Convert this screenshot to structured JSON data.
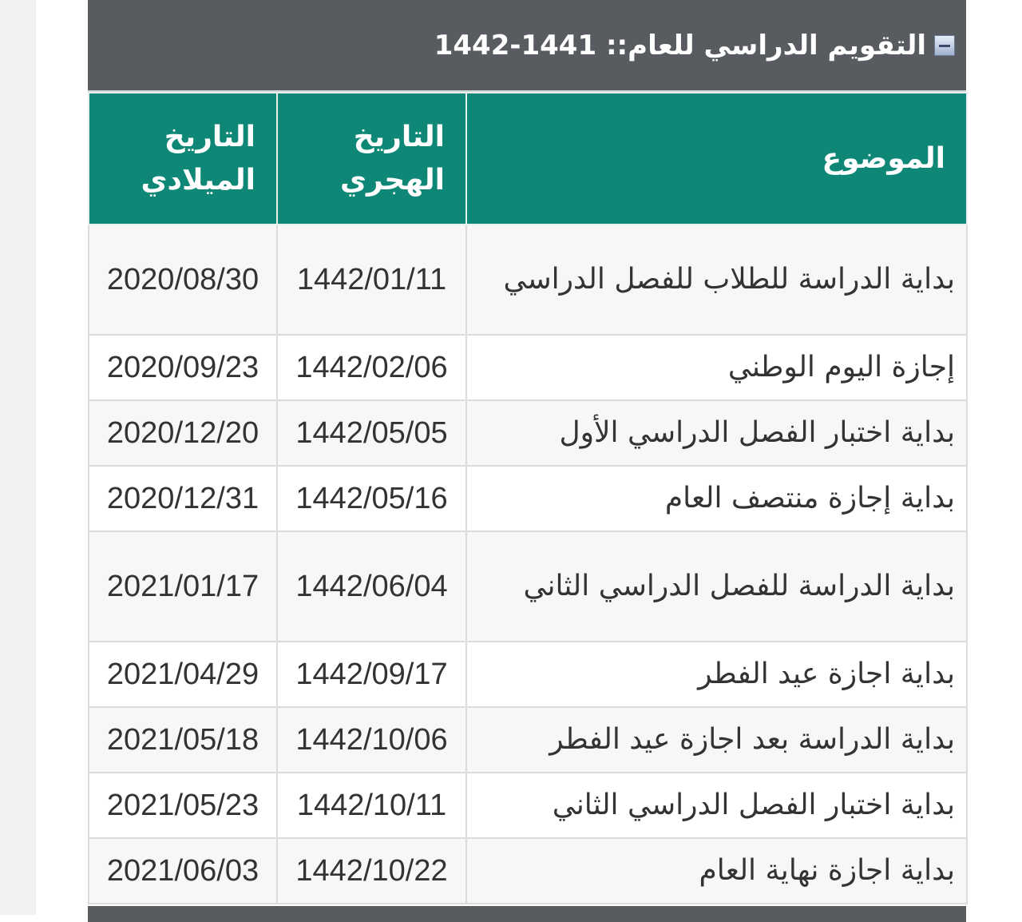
{
  "title": "التقويم الدراسي للعام:: 1441-1442",
  "title_icon": "collapse-icon",
  "headers": {
    "topic": "الموضوع",
    "hijri": "التاريخ الهجري",
    "gregorian": "التاريخ الميلادي"
  },
  "rows": [
    {
      "topic": "بداية الدراسة للطلاب للفصل الدراسي",
      "hijri": "1442/01/11",
      "gregorian": "2020/08/30"
    },
    {
      "topic": "إجازة اليوم الوطني",
      "hijri": "1442/02/06",
      "gregorian": "2020/09/23"
    },
    {
      "topic": "بداية اختبار الفصل الدراسي الأول",
      "hijri": "1442/05/05",
      "gregorian": "2020/12/20"
    },
    {
      "topic": "بداية إجازة منتصف العام",
      "hijri": "1442/05/16",
      "gregorian": "2020/12/31"
    },
    {
      "topic": "بداية الدراسة للفصل الدراسي الثاني",
      "hijri": "1442/06/04",
      "gregorian": "2021/01/17"
    },
    {
      "topic": "بداية اجازة عيد الفطر",
      "hijri": "1442/09/17",
      "gregorian": "2021/04/29"
    },
    {
      "topic": "بداية الدراسة بعد اجازة عيد الفطر",
      "hijri": "1442/10/06",
      "gregorian": "2021/05/18"
    },
    {
      "topic": "بداية اختبار الفصل الدراسي الثاني",
      "hijri": "1442/10/11",
      "gregorian": "2021/05/23"
    },
    {
      "topic": "بداية اجازة نهاية العام",
      "hijri": "1442/10/22",
      "gregorian": "2021/06/03"
    }
  ],
  "colors": {
    "title_bg": "#585b60",
    "header_bg": "#0e8777"
  }
}
